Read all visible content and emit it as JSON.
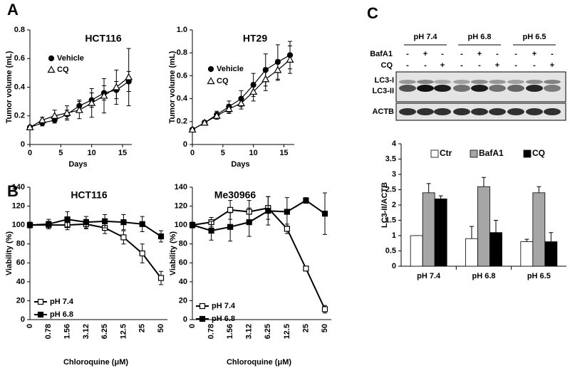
{
  "panel_labels": [
    "A",
    "B",
    "C"
  ],
  "chart_data": [
    {
      "type": "line",
      "title": "HCT116",
      "xlabel": "Days",
      "ylabel": "Tumor volume (mL)",
      "x": [
        0,
        2,
        4,
        6,
        8,
        10,
        12,
        14,
        16
      ],
      "xlim": [
        0,
        16.5
      ],
      "xticks": [
        0,
        5,
        10,
        15
      ],
      "ylim": [
        0,
        0.8
      ],
      "yticks": [
        0,
        0.2,
        0.4,
        0.6,
        0.8
      ],
      "series": [
        {
          "name": "Vehicle",
          "color": "#000000",
          "marker": "circle",
          "filled": true,
          "values": [
            0.12,
            0.15,
            0.17,
            0.21,
            0.27,
            0.31,
            0.36,
            0.38,
            0.44
          ],
          "errors": [
            0.01,
            0.02,
            0.02,
            0.03,
            0.04,
            0.05,
            0.05,
            0.06,
            0.07
          ]
        },
        {
          "name": "CQ",
          "color": "#000000",
          "marker": "triangle",
          "filled": false,
          "values": [
            0.12,
            0.17,
            0.2,
            0.22,
            0.24,
            0.29,
            0.34,
            0.4,
            0.47
          ],
          "errors": [
            0.01,
            0.02,
            0.04,
            0.05,
            0.06,
            0.1,
            0.12,
            0.12,
            0.2
          ]
        }
      ]
    },
    {
      "type": "line",
      "title": "HT29",
      "xlabel": "Days",
      "ylabel": "Tumor volume (mL)",
      "x": [
        0,
        2,
        4,
        6,
        8,
        10,
        12,
        14,
        16
      ],
      "xlim": [
        0,
        16.7
      ],
      "xticks": [
        0,
        5,
        10,
        15
      ],
      "ylim": [
        0,
        1
      ],
      "yticks": [
        0,
        0.2,
        0.4,
        0.6,
        0.8,
        {
          "value": 1,
          "label": "1.0"
        }
      ],
      "series": [
        {
          "name": "Vehicle",
          "color": "#000000",
          "marker": "circle",
          "filled": true,
          "values": [
            0.13,
            0.19,
            0.26,
            0.33,
            0.4,
            0.52,
            0.65,
            0.72,
            0.78
          ],
          "errors": [
            0.01,
            0.02,
            0.03,
            0.05,
            0.07,
            0.1,
            0.14,
            0.15,
            0.12
          ]
        },
        {
          "name": "CQ",
          "color": "#000000",
          "marker": "triangle",
          "filled": false,
          "values": [
            0.13,
            0.19,
            0.25,
            0.31,
            0.36,
            0.46,
            0.57,
            0.65,
            0.74
          ],
          "errors": [
            0.01,
            0.02,
            0.03,
            0.04,
            0.05,
            0.08,
            0.1,
            0.09,
            0.12
          ]
        }
      ]
    },
    {
      "type": "line",
      "title": "HCT116",
      "xlabel": "Chloroquine (μM)",
      "ylabel": "Viability (%)",
      "categories": [
        "0",
        "0.78",
        "1.56",
        "3.12",
        "6.25",
        "12.5",
        "25",
        "50"
      ],
      "ylim": [
        0,
        140
      ],
      "yticks": [
        0,
        20,
        40,
        60,
        80,
        100,
        120,
        140
      ],
      "series": [
        {
          "name": "pH 7.4",
          "color": "#000000",
          "marker": "square",
          "filled": false,
          "values": [
            100,
            100,
            100,
            101,
            97,
            87,
            70,
            44
          ],
          "errors": [
            3,
            4,
            5,
            5,
            6,
            7,
            10,
            7
          ]
        },
        {
          "name": "pH 6.8",
          "color": "#000000",
          "marker": "square",
          "filled": true,
          "values": [
            100,
            101,
            106,
            103,
            104,
            103,
            101,
            88
          ],
          "errors": [
            3,
            5,
            8,
            6,
            7,
            8,
            8,
            6
          ]
        }
      ]
    },
    {
      "type": "line",
      "title": "Me30966",
      "xlabel": "Chloroquine (μM)",
      "ylabel": "Viability (%)",
      "categories": [
        "0",
        "0.78",
        "1.56",
        "3.12",
        "6.25",
        "12.5",
        "25",
        "50"
      ],
      "ylim": [
        0,
        140
      ],
      "yticks": [
        0,
        20,
        40,
        60,
        80,
        100,
        120,
        140
      ],
      "series": [
        {
          "name": "pH 7.4",
          "color": "#000000",
          "marker": "square",
          "filled": false,
          "values": [
            100,
            103,
            116,
            114,
            118,
            96,
            54,
            11
          ],
          "errors": [
            3,
            5,
            10,
            12,
            12,
            5,
            2,
            4
          ]
        },
        {
          "name": "pH 6.8",
          "color": "#000000",
          "marker": "square",
          "filled": true,
          "values": [
            100,
            94,
            98,
            103,
            115,
            114,
            126,
            112
          ],
          "errors": [
            3,
            10,
            15,
            15,
            15,
            15,
            3,
            22
          ]
        }
      ]
    },
    {
      "type": "bar",
      "ylabel": "LC3-II/ACTB",
      "categories": [
        "pH 7.4",
        "pH 6.8",
        "pH 6.5"
      ],
      "ylim": [
        0,
        4
      ],
      "yticks": [
        0,
        0.5,
        1,
        1.5,
        2,
        2.5,
        3,
        3.5,
        4
      ],
      "series": [
        {
          "name": "Ctr",
          "color": "#ffffff",
          "values": [
            1,
            0.9,
            0.8
          ],
          "errors": [
            0,
            0.4,
            0.08
          ]
        },
        {
          "name": "BafA1",
          "color": "#a6a6a6",
          "values": [
            2.4,
            2.6,
            2.4
          ],
          "errors": [
            0.3,
            0.3,
            0.2
          ]
        },
        {
          "name": "CQ",
          "color": "#000000",
          "values": [
            2.2,
            1.1,
            0.8
          ],
          "errors": [
            0.1,
            0.4,
            0.3
          ]
        }
      ]
    }
  ],
  "blot": {
    "groups": [
      "pH 7.4",
      "pH 6.8",
      "pH 6.5"
    ],
    "rows": [
      {
        "label": "BafA1",
        "signs": [
          "-",
          "+",
          "-",
          "-",
          "+",
          "-",
          "-",
          "+",
          "-"
        ]
      },
      {
        "label": "CQ",
        "signs": [
          "-",
          "-",
          "+",
          "-",
          "-",
          "+",
          "-",
          "-",
          "+"
        ]
      }
    ],
    "bands": [
      "LC3-I",
      "LC3-II",
      "ACTB"
    ]
  }
}
